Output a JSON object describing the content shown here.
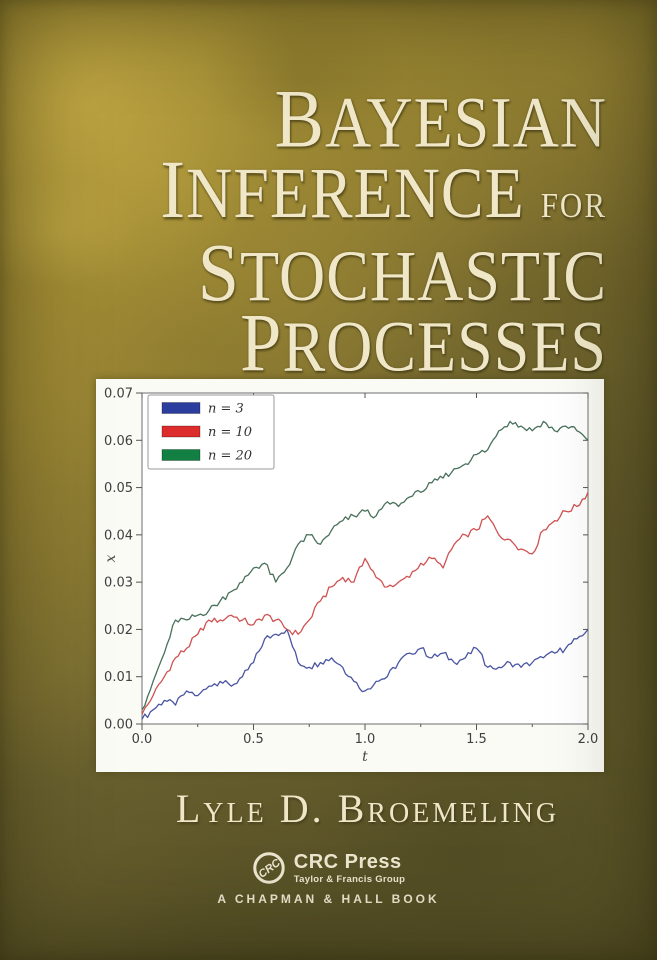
{
  "cover": {
    "title": {
      "word1": "Bayesian",
      "word2": "Inference",
      "connector": "for",
      "word3": "Stochastic",
      "word4": "Processes"
    },
    "author": "Lyle D. Broemeling",
    "publisher": {
      "logo_monogram": "CRC",
      "name": "CRC Press",
      "group": "Taylor & Francis Group",
      "imprint_line": "A Chapman & Hall Book"
    }
  },
  "colors": {
    "cover_gold": "#a89032",
    "cover_olive_dark": "#575223",
    "title_cream": "#efe7c8",
    "chart_panel_white": "#fbfbf6",
    "series_blue": "#4a55a2",
    "series_red": "#d85555",
    "series_green": "#49705a"
  },
  "chart_data": {
    "type": "line",
    "title": "",
    "xlabel": "t",
    "ylabel": "x",
    "xlim": [
      0.0,
      2.0
    ],
    "ylim": [
      0.0,
      0.07
    ],
    "xticks": [
      0.0,
      0.5,
      1.0,
      1.5,
      2.0
    ],
    "xtick_labels": [
      "0.0",
      "0.5",
      "1.0",
      "1.5",
      "2.0"
    ],
    "ytick_values": [
      0.0,
      0.01,
      0.02,
      0.03,
      0.04,
      0.05,
      0.06,
      0.07
    ],
    "ytick_labels": [
      "0.00",
      "0.01",
      "0.02",
      "0.03",
      "0.04",
      "0.05",
      "0.06",
      "0.07"
    ],
    "minor_xtick_step": 0.25,
    "grid": false,
    "legend_position": "upper left",
    "x_start": 0.0,
    "x_step": 0.05,
    "noise_amplitude": 0.0007,
    "series": [
      {
        "name": "n = 3",
        "line_color": "#4a55a2",
        "swatch_color": "#2b3e9d",
        "values": [
          0.001,
          0.003,
          0.005,
          0.004,
          0.007,
          0.006,
          0.008,
          0.009,
          0.008,
          0.01,
          0.013,
          0.018,
          0.019,
          0.02,
          0.013,
          0.012,
          0.013,
          0.014,
          0.012,
          0.009,
          0.007,
          0.009,
          0.01,
          0.013,
          0.015,
          0.016,
          0.014,
          0.015,
          0.013,
          0.014,
          0.016,
          0.012,
          0.012,
          0.013,
          0.012,
          0.013,
          0.014,
          0.015,
          0.016,
          0.018,
          0.02
        ]
      },
      {
        "name": "n = 10",
        "line_color": "#d05252",
        "swatch_color": "#dd2c2c",
        "values": [
          0.002,
          0.006,
          0.01,
          0.014,
          0.016,
          0.019,
          0.022,
          0.022,
          0.023,
          0.022,
          0.021,
          0.023,
          0.022,
          0.02,
          0.019,
          0.022,
          0.026,
          0.029,
          0.031,
          0.03,
          0.035,
          0.031,
          0.029,
          0.03,
          0.031,
          0.034,
          0.035,
          0.033,
          0.038,
          0.04,
          0.041,
          0.044,
          0.04,
          0.039,
          0.037,
          0.036,
          0.041,
          0.043,
          0.045,
          0.046,
          0.049
        ]
      },
      {
        "name": "n = 20",
        "line_color": "#49705a",
        "swatch_color": "#128043",
        "values": [
          0.003,
          0.009,
          0.015,
          0.022,
          0.022,
          0.023,
          0.024,
          0.026,
          0.028,
          0.03,
          0.033,
          0.034,
          0.03,
          0.033,
          0.038,
          0.04,
          0.038,
          0.041,
          0.043,
          0.044,
          0.045,
          0.044,
          0.047,
          0.046,
          0.048,
          0.049,
          0.051,
          0.052,
          0.054,
          0.055,
          0.057,
          0.058,
          0.062,
          0.064,
          0.063,
          0.062,
          0.064,
          0.062,
          0.063,
          0.062,
          0.06
        ]
      }
    ]
  }
}
